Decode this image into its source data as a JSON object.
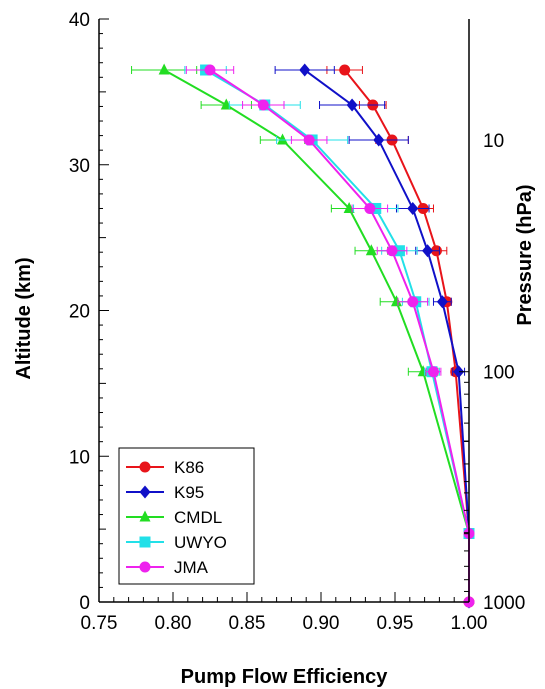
{
  "chart_data": {
    "type": "line",
    "xlabel": "Pump Flow Efficiency",
    "ylabel": "Altitude (km)",
    "y2label": "Pressure (hPa)",
    "xlim": [
      0.75,
      1.0
    ],
    "ylim": [
      0,
      40
    ],
    "x_ticks": [
      "0.75",
      "0.80",
      "0.85",
      "0.90",
      "0.95",
      "1.00"
    ],
    "y_ticks": [
      "0",
      "10",
      "20",
      "30",
      "40"
    ],
    "pressure_ticks": [
      {
        "label": "10",
        "altitude": 31.7
      },
      {
        "label": "100",
        "altitude": 15.8
      },
      {
        "label": "1000",
        "altitude": 0
      }
    ],
    "grid": false,
    "legend_position": "bottom-left",
    "series": [
      {
        "name": "K86",
        "color": "#e8141a",
        "marker": "circle",
        "points": [
          {
            "x": 1.0,
            "y": 0
          },
          {
            "x": 1.0,
            "y": 4.7
          },
          {
            "x": 0.991,
            "y": 15.8,
            "err": 0.003
          },
          {
            "x": 0.985,
            "y": 20.6,
            "err": 0.003
          },
          {
            "x": 0.978,
            "y": 24.1,
            "err": 0.007
          },
          {
            "x": 0.969,
            "y": 27.0,
            "err": 0.007
          },
          {
            "x": 0.948,
            "y": 31.7,
            "err": 0.011
          },
          {
            "x": 0.935,
            "y": 34.1,
            "err": 0.009
          },
          {
            "x": 0.916,
            "y": 36.5,
            "err": 0.012
          }
        ]
      },
      {
        "name": "K95",
        "color": "#1010c8",
        "marker": "diamond",
        "points": [
          {
            "x": 1.0,
            "y": 0
          },
          {
            "x": 1.0,
            "y": 4.7
          },
          {
            "x": 0.993,
            "y": 15.8,
            "err": 0.004
          },
          {
            "x": 0.982,
            "y": 20.6,
            "err": 0.006
          },
          {
            "x": 0.972,
            "y": 24.1,
            "err": 0.008
          },
          {
            "x": 0.962,
            "y": 27.0,
            "err": 0.011
          },
          {
            "x": 0.939,
            "y": 31.7,
            "err": 0.02
          },
          {
            "x": 0.921,
            "y": 34.1,
            "err": 0.022
          },
          {
            "x": 0.889,
            "y": 36.5,
            "err": 0.02
          }
        ]
      },
      {
        "name": "CMDL",
        "color": "#22dd22",
        "marker": "triangle",
        "points": [
          {
            "x": 1.0,
            "y": 4.7
          },
          {
            "x": 0.969,
            "y": 15.8,
            "err": 0.01
          },
          {
            "x": 0.951,
            "y": 20.6,
            "err": 0.011
          },
          {
            "x": 0.934,
            "y": 24.1,
            "err": 0.011
          },
          {
            "x": 0.919,
            "y": 27.0,
            "err": 0.012
          },
          {
            "x": 0.874,
            "y": 31.7,
            "err": 0.015
          },
          {
            "x": 0.836,
            "y": 34.1,
            "err": 0.017
          },
          {
            "x": 0.794,
            "y": 36.5,
            "err": 0.022
          }
        ]
      },
      {
        "name": "UWYO",
        "color": "#22e0e8",
        "marker": "square",
        "points": [
          {
            "x": 1.0,
            "y": 4.7
          },
          {
            "x": 0.975,
            "y": 15.8,
            "err": 0.005
          },
          {
            "x": 0.964,
            "y": 20.6,
            "err": 0.009
          },
          {
            "x": 0.953,
            "y": 24.1,
            "err": 0.012
          },
          {
            "x": 0.937,
            "y": 27.0,
            "err": 0.015
          },
          {
            "x": 0.894,
            "y": 31.7,
            "err": 0.024
          },
          {
            "x": 0.862,
            "y": 34.1,
            "err": 0.024
          },
          {
            "x": 0.822,
            "y": 36.5,
            "err": 0.014
          }
        ]
      },
      {
        "name": "JMA",
        "color": "#ee22ee",
        "marker": "circle",
        "points": [
          {
            "x": 1.0,
            "y": 0
          },
          {
            "x": 1.0,
            "y": 4.7
          },
          {
            "x": 0.976,
            "y": 15.8,
            "err": 0.005
          },
          {
            "x": 0.962,
            "y": 20.6,
            "err": 0.01
          },
          {
            "x": 0.948,
            "y": 24.1,
            "err": 0.01
          },
          {
            "x": 0.933,
            "y": 27.0,
            "err": 0.012
          },
          {
            "x": 0.892,
            "y": 31.7,
            "err": 0.012
          },
          {
            "x": 0.861,
            "y": 34.1,
            "err": 0.014
          },
          {
            "x": 0.825,
            "y": 36.5,
            "err": 0.016
          }
        ]
      }
    ]
  }
}
